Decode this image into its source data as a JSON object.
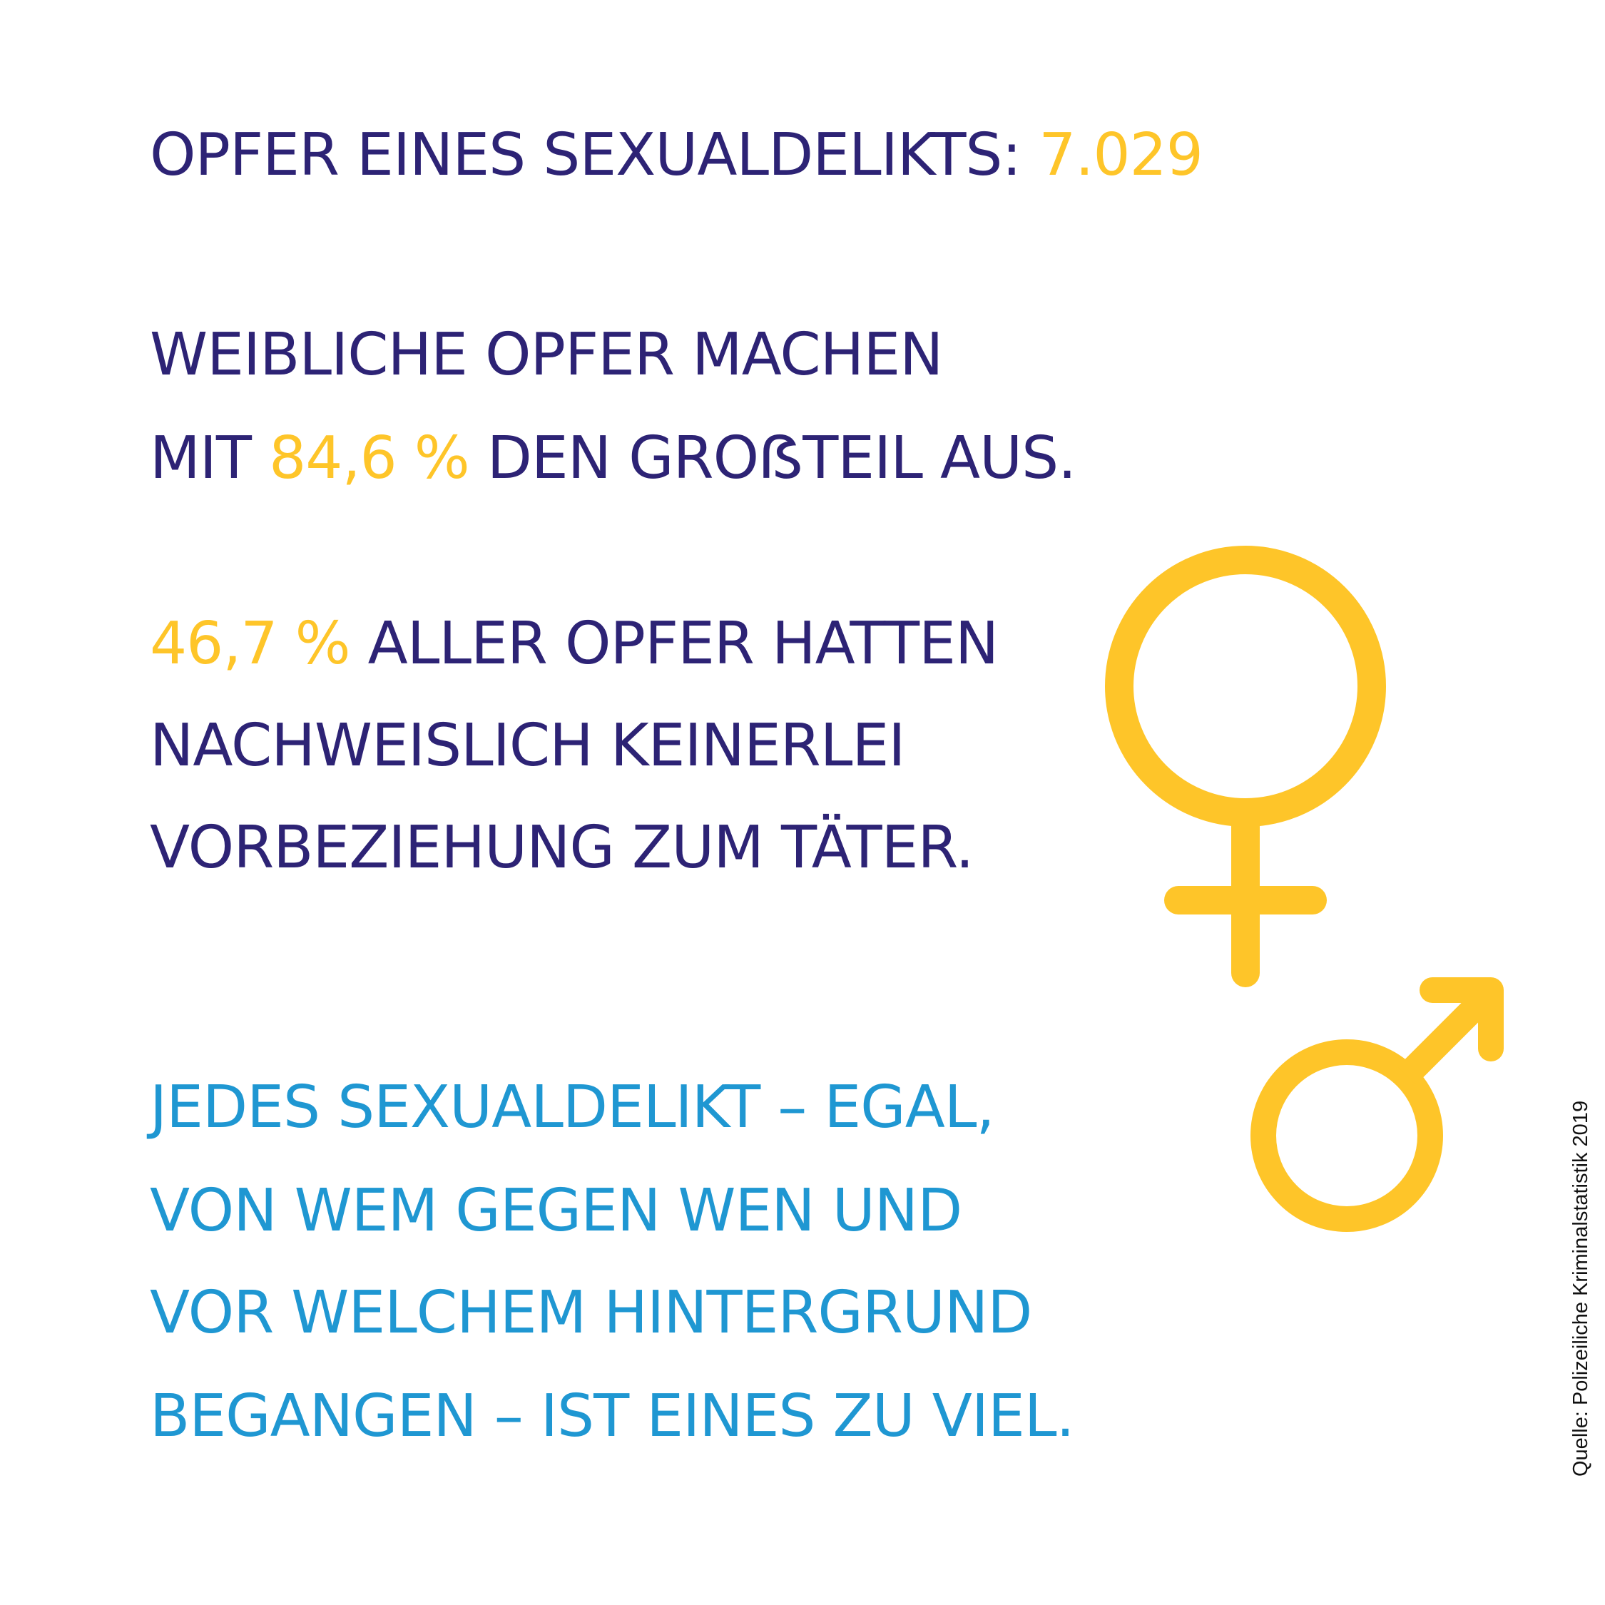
{
  "colors": {
    "navy": "#2d2375",
    "yellow": "#fec529",
    "blue": "#1f97d2"
  },
  "headline": {
    "label": "OPFER EINES SEXUALDELIKTS:",
    "value": "7.029"
  },
  "fact_female": {
    "line1": "WEIBLICHE OPFER MACHEN",
    "line2_prefix": "MIT",
    "line2_value": "84,6 %",
    "line2_suffix": "DEN GROẞTEIL AUS."
  },
  "fact_relation": {
    "line1_value": "46,7 %",
    "line1_suffix": "ALLER OPFER HATTEN",
    "line2": "NACHWEISLICH KEINERLEI",
    "line3": "VORBEZIEHUNG ZUM TÄTER."
  },
  "closing": {
    "line1": "JEDES SEXUALDELIKT – EGAL,",
    "line2": "VON WEM GEGEN WEN UND",
    "line3": "VOR WELCHEM HINTERGRUND",
    "line4": "BEGANGEN – IST EINES ZU VIEL."
  },
  "source": "Quelle: Polizeiliche Kriminalstatistik 2019",
  "icons": {
    "female": "female-symbol-icon",
    "male": "male-symbol-icon"
  }
}
